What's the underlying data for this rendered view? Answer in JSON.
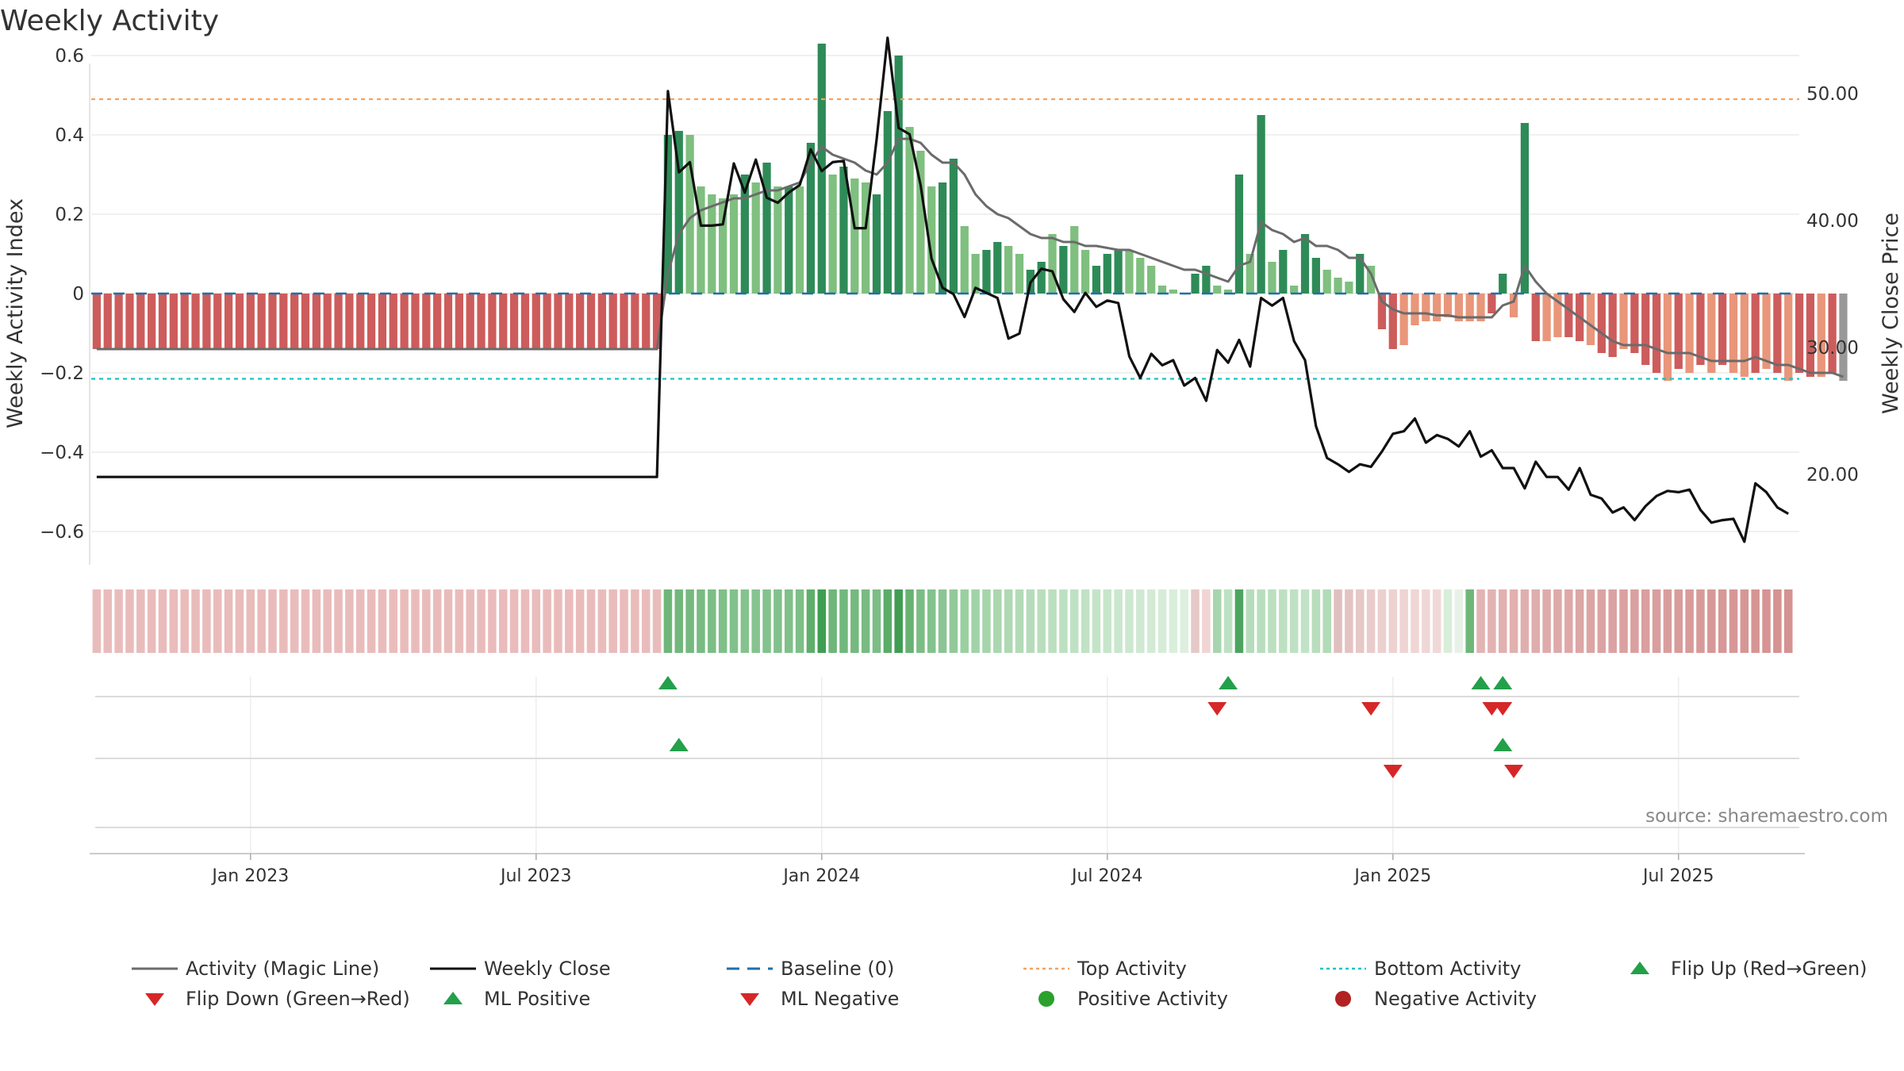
{
  "title": "Weekly Activity",
  "source": "source: sharemaestro.com",
  "colors": {
    "magic_line": "#6b6b6b",
    "weekly_close": "#111111",
    "baseline": "#1f6fa8",
    "top_activity": "#f4a261",
    "bottom_activity": "#17c3c8",
    "strong_green": "#2e8b57",
    "light_green": "#7fbf7f",
    "strong_red": "#cd5c5c",
    "light_red": "#e9967a",
    "flip_up": "#23a04a",
    "flip_down": "#d62728",
    "positive_dot": "#2ca02c",
    "negative_dot": "#b22222"
  },
  "chart_data": {
    "type": "bar",
    "title": "Weekly Activity",
    "ylabel": "Weekly Activity Index",
    "y2label": "Weekly Close Price",
    "ylim": [
      -0.68,
      0.6
    ],
    "y2lim": [
      13,
      53
    ],
    "yticks": [
      "0.6",
      "0.4",
      "0.2",
      "0",
      "−0.2",
      "−0.4",
      "−0.6"
    ],
    "yticks_values": [
      0.6,
      0.4,
      0.2,
      0,
      -0.2,
      -0.4,
      -0.6
    ],
    "y2ticks": [
      "50.00",
      "40.00",
      "30.00",
      "20.00"
    ],
    "y2ticks_values": [
      50,
      40,
      30,
      20
    ],
    "xticks": [
      "Jan 2023",
      "Jul 2023",
      "Jan 2024",
      "Jul 2024",
      "Jan 2025",
      "Jul 2025"
    ],
    "xticks_week_index": [
      14,
      40,
      66,
      92,
      118,
      144
    ],
    "week_count": 156,
    "top_activity": 0.49,
    "bottom_activity": -0.215,
    "baseline": 0,
    "activity": [
      -0.14,
      -0.14,
      -0.14,
      -0.14,
      -0.14,
      -0.14,
      -0.14,
      -0.14,
      -0.14,
      -0.14,
      -0.14,
      -0.14,
      -0.14,
      -0.14,
      -0.14,
      -0.14,
      -0.14,
      -0.14,
      -0.14,
      -0.14,
      -0.14,
      -0.14,
      -0.14,
      -0.14,
      -0.14,
      -0.14,
      -0.14,
      -0.14,
      -0.14,
      -0.14,
      -0.14,
      -0.14,
      -0.14,
      -0.14,
      -0.14,
      -0.14,
      -0.14,
      -0.14,
      -0.14,
      -0.14,
      -0.14,
      -0.14,
      -0.14,
      -0.14,
      -0.14,
      -0.14,
      -0.14,
      -0.14,
      -0.14,
      -0.14,
      -0.14,
      -0.14,
      0.4,
      0.41,
      0.4,
      0.27,
      0.25,
      0.24,
      0.25,
      0.3,
      0.28,
      0.33,
      0.27,
      0.27,
      0.27,
      0.38,
      0.63,
      0.3,
      0.32,
      0.29,
      0.28,
      0.25,
      0.46,
      0.6,
      0.42,
      0.36,
      0.27,
      0.28,
      0.34,
      0.17,
      0.1,
      0.11,
      0.13,
      0.12,
      0.1,
      0.06,
      0.08,
      0.15,
      0.12,
      0.17,
      0.11,
      0.07,
      0.1,
      0.11,
      0.11,
      0.09,
      0.07,
      0.02,
      0.01,
      0.0,
      0.05,
      0.07,
      0.02,
      0.01,
      0.3,
      0.1,
      0.45,
      0.08,
      0.11,
      0.02,
      0.15,
      0.09,
      0.06,
      0.04,
      0.03,
      0.1,
      0.07,
      -0.09,
      -0.14,
      -0.13,
      -0.08,
      -0.07,
      -0.07,
      -0.06,
      -0.07,
      -0.07,
      -0.07,
      -0.05,
      0.05,
      -0.06,
      0.43,
      -0.12,
      -0.12,
      -0.11,
      -0.11,
      -0.12,
      -0.13,
      -0.15,
      -0.16,
      -0.14,
      -0.15,
      -0.18,
      -0.2,
      -0.22,
      -0.19,
      -0.2,
      -0.18,
      -0.2,
      -0.18,
      -0.2,
      -0.21,
      -0.2,
      -0.19,
      -0.2,
      -0.22,
      -0.2,
      -0.21,
      -0.21,
      -0.2,
      -0.22
    ],
    "magic_line": [
      -0.14,
      -0.14,
      -0.14,
      -0.14,
      -0.14,
      -0.14,
      -0.14,
      -0.14,
      -0.14,
      -0.14,
      -0.14,
      -0.14,
      -0.14,
      -0.14,
      -0.14,
      -0.14,
      -0.14,
      -0.14,
      -0.14,
      -0.14,
      -0.14,
      -0.14,
      -0.14,
      -0.14,
      -0.14,
      -0.14,
      -0.14,
      -0.14,
      -0.14,
      -0.14,
      -0.14,
      -0.14,
      -0.14,
      -0.14,
      -0.14,
      -0.14,
      -0.14,
      -0.14,
      -0.14,
      -0.14,
      -0.14,
      -0.14,
      -0.14,
      -0.14,
      -0.14,
      -0.14,
      -0.14,
      -0.14,
      -0.14,
      -0.14,
      -0.14,
      -0.14,
      0.05,
      0.15,
      0.19,
      0.21,
      0.22,
      0.23,
      0.24,
      0.24,
      0.25,
      0.26,
      0.26,
      0.27,
      0.28,
      0.33,
      0.37,
      0.35,
      0.34,
      0.33,
      0.31,
      0.3,
      0.33,
      0.39,
      0.39,
      0.38,
      0.35,
      0.33,
      0.33,
      0.3,
      0.25,
      0.22,
      0.2,
      0.19,
      0.17,
      0.15,
      0.14,
      0.14,
      0.13,
      0.13,
      0.12,
      0.12,
      0.115,
      0.11,
      0.11,
      0.1,
      0.09,
      0.08,
      0.07,
      0.06,
      0.06,
      0.05,
      0.04,
      0.03,
      0.07,
      0.08,
      0.18,
      0.16,
      0.15,
      0.13,
      0.14,
      0.12,
      0.12,
      0.11,
      0.09,
      0.09,
      0.05,
      -0.02,
      -0.04,
      -0.05,
      -0.05,
      -0.05,
      -0.055,
      -0.055,
      -0.06,
      -0.06,
      -0.06,
      -0.06,
      -0.03,
      -0.02,
      0.07,
      0.03,
      0.0,
      -0.02,
      -0.04,
      -0.06,
      -0.08,
      -0.1,
      -0.12,
      -0.13,
      -0.13,
      -0.13,
      -0.14,
      -0.15,
      -0.15,
      -0.15,
      -0.16,
      -0.17,
      -0.17,
      -0.17,
      -0.17,
      -0.16,
      -0.17,
      -0.18,
      -0.18,
      -0.19,
      -0.2,
      -0.2,
      -0.2,
      -0.21
    ],
    "weekly_close": [
      19.8,
      19.8,
      19.8,
      19.8,
      19.8,
      19.8,
      19.8,
      19.8,
      19.8,
      19.8,
      19.8,
      19.8,
      19.8,
      19.8,
      19.8,
      19.8,
      19.8,
      19.8,
      19.8,
      19.8,
      19.8,
      19.8,
      19.8,
      19.8,
      19.8,
      19.8,
      19.8,
      19.8,
      19.8,
      19.8,
      19.8,
      19.8,
      19.8,
      19.8,
      19.8,
      19.8,
      19.8,
      19.8,
      19.8,
      19.8,
      19.8,
      19.8,
      19.8,
      19.8,
      19.8,
      19.8,
      19.8,
      19.8,
      19.8,
      19.8,
      19.8,
      19.8,
      50.2,
      43.8,
      44.6,
      39.6,
      39.6,
      39.7,
      44.5,
      42.2,
      44.8,
      41.8,
      41.4,
      42.2,
      42.8,
      45.6,
      43.9,
      44.6,
      44.7,
      39.4,
      39.4,
      46.4,
      54.4,
      47.3,
      46.8,
      42.8,
      37.0,
      34.7,
      34.2,
      32.4,
      34.7,
      34.3,
      33.9,
      30.7,
      31.1,
      35.1,
      36.2,
      36.0,
      33.8,
      32.8,
      34.3,
      33.2,
      33.7,
      33.5,
      29.3,
      27.6,
      29.5,
      28.6,
      29.0,
      27.0,
      27.6,
      25.8,
      29.8,
      28.8,
      30.6,
      28.5,
      33.9,
      33.3,
      33.9,
      30.5,
      29.0,
      23.8,
      21.3,
      20.8,
      20.2,
      20.8,
      20.6,
      21.8,
      23.2,
      23.4,
      24.4,
      22.5,
      23.1,
      22.8,
      22.2,
      23.4,
      21.4,
      21.9,
      20.5,
      20.5,
      18.9,
      21.0,
      19.8,
      19.8,
      18.8,
      20.5,
      18.4,
      18.1,
      17.0,
      17.4,
      16.4,
      17.5,
      18.3,
      18.7,
      18.6,
      18.8,
      17.2,
      16.2,
      16.4,
      16.5,
      14.7,
      19.3,
      18.6,
      17.4,
      16.9
    ],
    "bar_styles": [
      "strong_red",
      "strong_red",
      "strong_red",
      "strong_red",
      "strong_red",
      "strong_red",
      "strong_red",
      "strong_red",
      "strong_red",
      "strong_red",
      "strong_red",
      "strong_red",
      "strong_red",
      "strong_red",
      "strong_red",
      "strong_red",
      "strong_red",
      "strong_red",
      "strong_red",
      "strong_red",
      "strong_red",
      "strong_red",
      "strong_red",
      "strong_red",
      "strong_red",
      "strong_red",
      "strong_red",
      "strong_red",
      "strong_red",
      "strong_red",
      "strong_red",
      "strong_red",
      "strong_red",
      "strong_red",
      "strong_red",
      "strong_red",
      "strong_red",
      "strong_red",
      "strong_red",
      "strong_red",
      "strong_red",
      "strong_red",
      "strong_red",
      "strong_red",
      "strong_red",
      "strong_red",
      "strong_red",
      "strong_red",
      "strong_red",
      "strong_red",
      "strong_red",
      "strong_red",
      "strong_green",
      "strong_green",
      "light_green",
      "light_green",
      "light_green",
      "light_green",
      "light_green",
      "strong_green",
      "light_green",
      "strong_green",
      "light_green",
      "strong_green",
      "light_green",
      "strong_green",
      "strong_green",
      "light_green",
      "strong_green",
      "light_green",
      "light_green",
      "strong_green",
      "strong_green",
      "strong_green",
      "light_green",
      "light_green",
      "light_green",
      "strong_green",
      "strong_green",
      "light_green",
      "light_green",
      "strong_green",
      "strong_green",
      "light_green",
      "light_green",
      "strong_green",
      "strong_green",
      "light_green",
      "strong_green",
      "light_green",
      "light_green",
      "strong_green",
      "strong_green",
      "strong_green",
      "light_green",
      "light_green",
      "light_green",
      "light_green",
      "light_green",
      "light_green",
      "strong_green",
      "strong_green",
      "light_green",
      "light_green",
      "strong_green",
      "light_green",
      "strong_green",
      "light_green",
      "strong_green",
      "light_green",
      "strong_green",
      "strong_green",
      "light_green",
      "light_green",
      "light_green",
      "strong_green",
      "light_green",
      "strong_red",
      "strong_red",
      "light_red",
      "light_red",
      "light_red",
      "light_red",
      "light_red",
      "light_red",
      "light_red",
      "light_red",
      "strong_red",
      "strong_green",
      "light_red",
      "strong_green",
      "strong_red",
      "light_red",
      "light_red",
      "strong_red",
      "strong_red",
      "light_red",
      "strong_red",
      "strong_red",
      "light_red",
      "strong_red",
      "strong_red",
      "strong_red",
      "light_red",
      "strong_red",
      "light_red",
      "strong_red",
      "light_red",
      "strong_red",
      "light_red",
      "light_red",
      "strong_red",
      "light_red",
      "strong_red",
      "light_red",
      "strong_red",
      "strong_red",
      "light_red",
      "strong_red"
    ],
    "strip_colors": [
      "#e9bcbb",
      "#e9bcbb",
      "#e9bcbb",
      "#e9bcbb",
      "#e9bcbb",
      "#e9bcbb",
      "#e9bcbb",
      "#e9bcbb",
      "#e9bcbb",
      "#e9bcbb",
      "#e9bcbb",
      "#e9bcbb",
      "#e9bcbb",
      "#e9bcbb",
      "#e9bcbb",
      "#e9bcbb",
      "#e9bcbb",
      "#e9bcbb",
      "#e9bcbb",
      "#e9bcbb",
      "#e9bcbb",
      "#e9bcbb",
      "#e9bcbb",
      "#e9bcbb",
      "#e9bcbb",
      "#e9bcbb",
      "#e9bcbb",
      "#e9bcbb",
      "#e9bcbb",
      "#e9bcbb",
      "#e9bcbb",
      "#e9bcbb",
      "#e9bcbb",
      "#e9bcbb",
      "#e9bcbb",
      "#e9bcbb",
      "#e9bcbb",
      "#e9bcbb",
      "#e9bcbb",
      "#e9bcbb",
      "#e9bcbb",
      "#e9bcbb",
      "#e9bcbb",
      "#e9bcbb",
      "#e9bcbb",
      "#e9bcbb",
      "#e9bcbb",
      "#e9bcbb",
      "#e9bcbb",
      "#e9bcbb",
      "#e9bcbb",
      "#e9bcbb",
      "#6fb679",
      "#72b87c",
      "#75b97f",
      "#79bb82",
      "#7cbd85",
      "#7fbf88",
      "#82c18b",
      "#85c28e",
      "#86c38f",
      "#84c28d",
      "#82c18b",
      "#80c089",
      "#7ebf87",
      "#5fae6b",
      "#3f9e52",
      "#6fb679",
      "#72b87c",
      "#75b97f",
      "#79bb82",
      "#7cbd85",
      "#5aac67",
      "#3f9e52",
      "#68b273",
      "#7cbd85",
      "#84c28d",
      "#8bc594",
      "#92c99a",
      "#9ad0a1",
      "#a1d3a8",
      "#a6d5ac",
      "#aad7b0",
      "#aed9b3",
      "#b2dbb7",
      "#b5dcba",
      "#b8debd",
      "#bbdfbf",
      "#bde0c1",
      "#bfe1c3",
      "#c1e2c5",
      "#c4e4c8",
      "#c7e5ca",
      "#cae7cd",
      "#cde8d0",
      "#d0e9d2",
      "#d3ebd5",
      "#d6ecd8",
      "#d9eedb",
      "#ddefde",
      "#e4c9c8",
      "#f0d5d4",
      "#a7d5ae",
      "#bfe1c3",
      "#4da45e",
      "#b6ddbb",
      "#b8debd",
      "#bbdfbf",
      "#bde0c1",
      "#bfe1c3",
      "#c1e2c5",
      "#b8debd",
      "#b2dbb7",
      "#e0c0bf",
      "#e3c4c3",
      "#e6c8c7",
      "#e9cccb",
      "#ecd0cf",
      "#edd2d1",
      "#eed4d3",
      "#efd6d5",
      "#efd7d6",
      "#f0d8d7",
      "#d8eed9",
      "#e8f1e8",
      "#6fb679",
      "#e2b4b3",
      "#e2b3b2",
      "#e1b1b0",
      "#e1b0af",
      "#e0aeae",
      "#dfadac",
      "#dfabaa",
      "#dea9a9",
      "#dea8a7",
      "#dda6a6",
      "#dca5a4",
      "#dca3a3",
      "#dba2a1",
      "#dba1a0",
      "#daa09f",
      "#da9f9e",
      "#d99e9d",
      "#d99d9c",
      "#d89c9b",
      "#d89b9a",
      "#d89a99",
      "#d79998",
      "#d79897",
      "#d79796",
      "#d69695",
      "#d69594",
      "#d69493",
      "#d59392",
      "#d59291"
    ],
    "signals": {
      "flip_up": [
        52,
        103,
        126,
        128
      ],
      "flip_down": [
        102,
        116,
        127,
        128
      ],
      "ml_positive": [
        53,
        128
      ],
      "ml_negative": [
        118,
        129
      ]
    },
    "legend_position": "bottom"
  },
  "legend": [
    {
      "key": "magic",
      "label": "Activity (Magic Line)"
    },
    {
      "key": "close",
      "label": "Weekly Close"
    },
    {
      "key": "baseline",
      "label": "Baseline (0)"
    },
    {
      "key": "top",
      "label": "Top Activity"
    },
    {
      "key": "bottom",
      "label": "Bottom Activity"
    },
    {
      "key": "flipup",
      "label": "Flip Up (Red→Green)"
    },
    {
      "key": "flipdown",
      "label": "Flip Down (Green→Red)"
    },
    {
      "key": "mlpos",
      "label": "ML Positive"
    },
    {
      "key": "mlneg",
      "label": "ML Negative"
    },
    {
      "key": "posact",
      "label": "Positive Activity"
    },
    {
      "key": "negact",
      "label": "Negative Activity"
    }
  ]
}
